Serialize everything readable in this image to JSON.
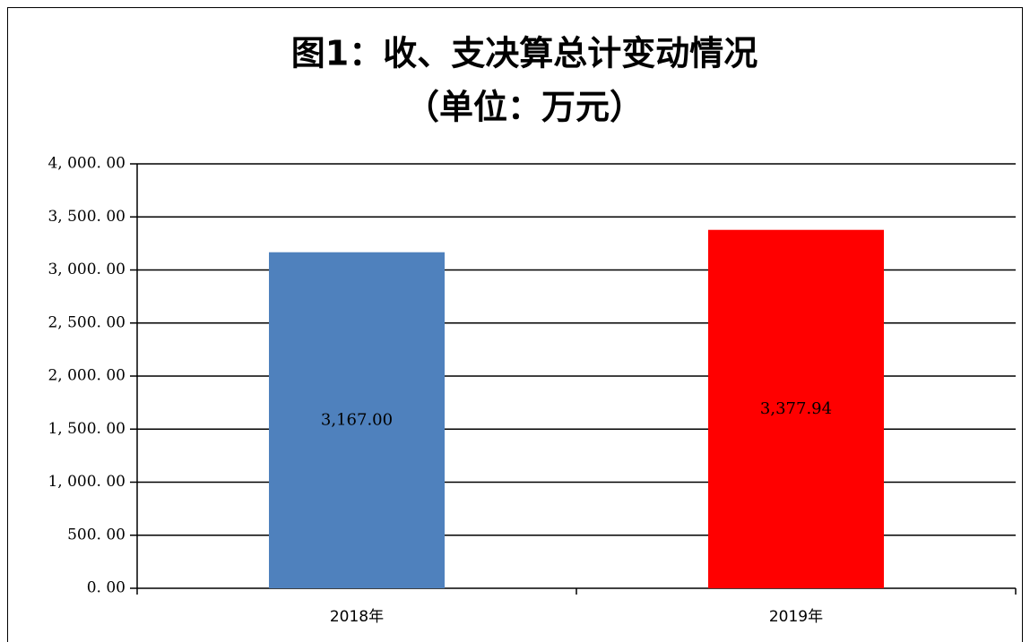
{
  "chart_data": {
    "type": "bar",
    "title": "图1：收、支决算总计变动情况",
    "subtitle": "（单位：万元）",
    "categories": [
      "2018年",
      "2019年"
    ],
    "values": [
      3167,
      3377.94
    ],
    "value_labels": [
      "3,167.00",
      "3,377.94"
    ],
    "colors": [
      "#4f81bd",
      "#ff0000"
    ],
    "ylim": [
      0,
      4000
    ],
    "yticks": [
      {
        "value": 0,
        "label": "0. 00"
      },
      {
        "value": 500,
        "label": "500. 00"
      },
      {
        "value": 1000,
        "label": "1, 000. 00"
      },
      {
        "value": 1500,
        "label": "1, 500. 00"
      },
      {
        "value": 2000,
        "label": "2, 000. 00"
      },
      {
        "value": 2500,
        "label": "2, 500. 00"
      },
      {
        "value": 3000,
        "label": "3, 000. 00"
      },
      {
        "value": 3500,
        "label": "3, 500. 00"
      },
      {
        "value": 4000,
        "label": "4, 000. 00"
      }
    ],
    "grid": true
  }
}
